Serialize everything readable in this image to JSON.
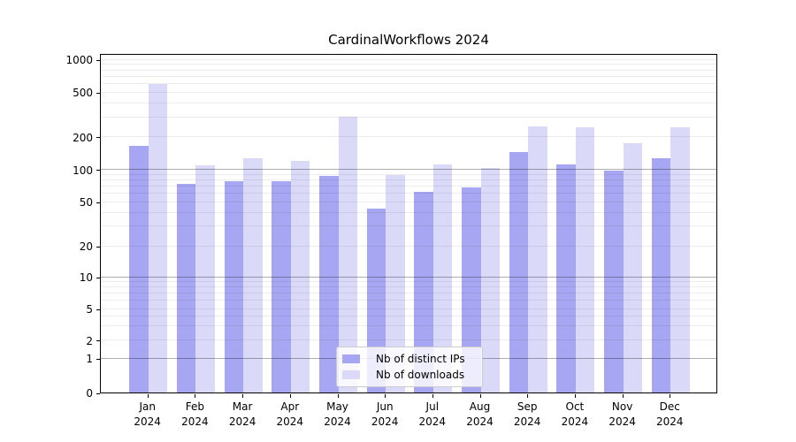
{
  "chart_data": {
    "type": "bar",
    "title": "CardinalWorkflows 2024",
    "categories": [
      "Jan 2024",
      "Feb 2024",
      "Mar 2024",
      "Apr 2024",
      "May 2024",
      "Jun 2024",
      "Jul 2024",
      "Aug 2024",
      "Sep 2024",
      "Oct 2024",
      "Nov 2024",
      "Dec 2024"
    ],
    "x_ticks": {
      "months": [
        "Jan",
        "Feb",
        "Mar",
        "Apr",
        "May",
        "Jun",
        "Jul",
        "Aug",
        "Sep",
        "Oct",
        "Nov",
        "Dec"
      ],
      "year": "2024"
    },
    "series": [
      {
        "name": "Nb of distinct IPs",
        "color": "#a6a6f2",
        "values": [
          165,
          73,
          78,
          77,
          86,
          43,
          62,
          68,
          145,
          112,
          97,
          127
        ]
      },
      {
        "name": "Nb of downloads",
        "color": "#dadaf8",
        "values": [
          600,
          108,
          127,
          120,
          305,
          89,
          110,
          102,
          250,
          245,
          176,
          245
        ]
      }
    ],
    "xlabel": "",
    "ylabel": "",
    "y_scale": "symlog",
    "ylim": [
      0,
      1150
    ],
    "y_ticks": [
      1000,
      500,
      200,
      100,
      50,
      20,
      10,
      5,
      2,
      1,
      0
    ],
    "y_major_gridlines": [
      1,
      10,
      100
    ],
    "y_minor_gridlines": [
      2,
      3,
      4,
      5,
      6,
      7,
      8,
      9,
      20,
      30,
      40,
      50,
      60,
      70,
      80,
      90,
      200,
      300,
      400,
      500,
      600,
      700,
      800,
      900,
      1000
    ],
    "grid": "both",
    "legend_position": "lower center"
  }
}
